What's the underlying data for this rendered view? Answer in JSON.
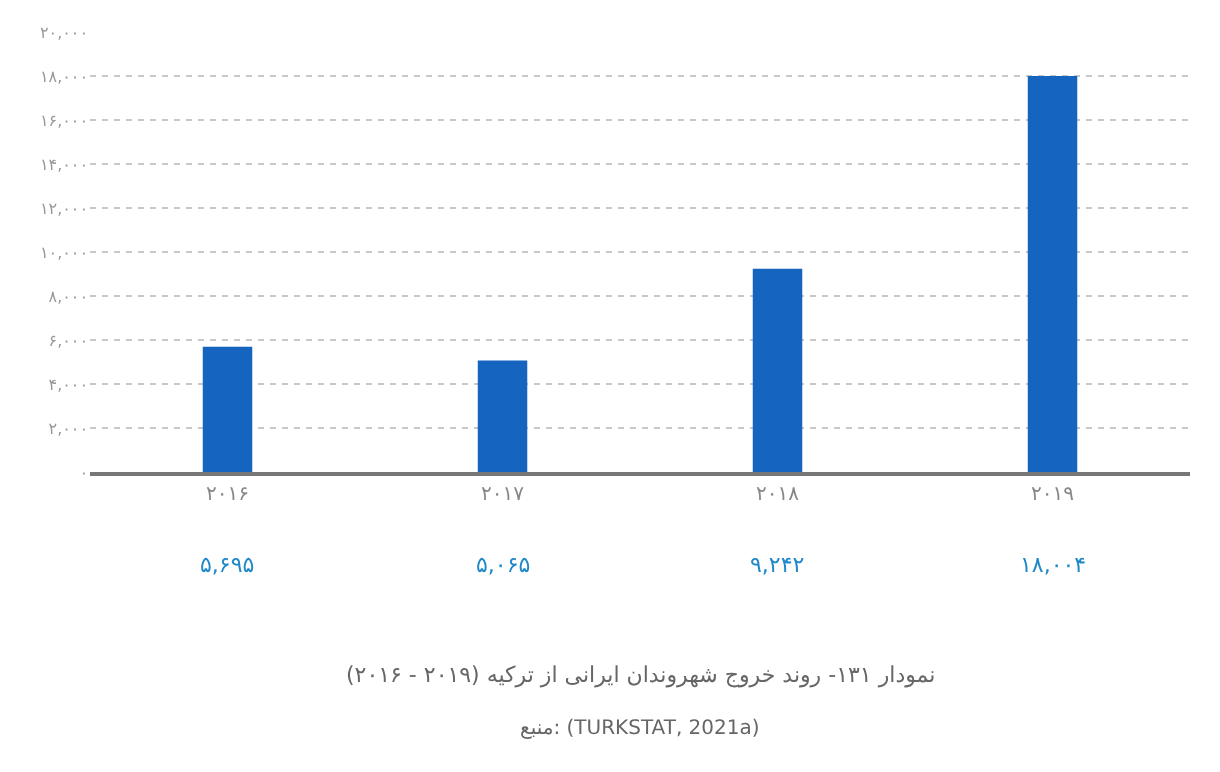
{
  "chart_data": {
    "type": "bar",
    "title": "نمودار ۱۳۱- روند خروج شهروندان ایرانی از ترکیه (۲۰۱۹ - ۲۰۱۶)",
    "annotations": [
      "منبع: (TURKSTAT, 2021a)"
    ],
    "categories": [
      "۲۰۱۶",
      "۲۰۱۷",
      "۲۰۱۸",
      "۲۰۱۹"
    ],
    "values": [
      5695,
      5065,
      9242,
      18004
    ],
    "value_labels": [
      "۵,۶۹۵",
      "۵,۰۶۵",
      "۹,۲۴۲",
      "۱۸,۰۰۴"
    ],
    "color": "#1565c0",
    "ylim": [
      0,
      20000
    ],
    "yticks": [
      {
        "value": 0,
        "label": "۰"
      },
      {
        "value": 2000,
        "label": "۲,۰۰۰"
      },
      {
        "value": 4000,
        "label": "۴,۰۰۰"
      },
      {
        "value": 6000,
        "label": "۶,۰۰۰"
      },
      {
        "value": 8000,
        "label": "۸,۰۰۰"
      },
      {
        "value": 10000,
        "label": "۱۰,۰۰۰"
      },
      {
        "value": 12000,
        "label": "۱۲,۰۰۰"
      },
      {
        "value": 14000,
        "label": "۱۴,۰۰۰"
      },
      {
        "value": 16000,
        "label": "۱۶,۰۰۰"
      },
      {
        "value": 18000,
        "label": "۱۸,۰۰۰"
      },
      {
        "value": 20000,
        "label": "۲۰,۰۰۰"
      }
    ],
    "grid": "y"
  }
}
